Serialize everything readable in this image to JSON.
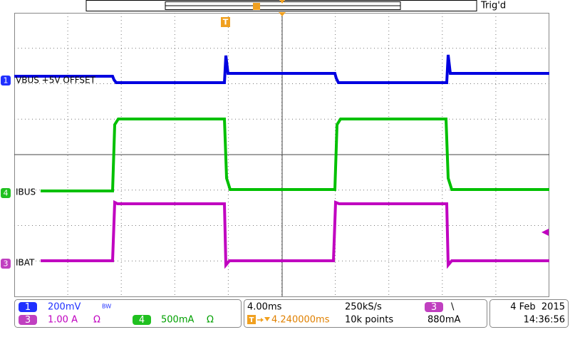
{
  "top_bar": {
    "status": "Trig'd",
    "trigger_marker": "T"
  },
  "channels": [
    {
      "number": "1",
      "label": "VBUS +5V OFFSET",
      "scale": "200mV",
      "bandwidth": "BW"
    },
    {
      "number": "4",
      "label": "IBUS",
      "scale": "500mA",
      "coupling": "Ω"
    },
    {
      "number": "3",
      "label": "IBAT",
      "scale": "1.00 A",
      "coupling": "Ω"
    }
  ],
  "timebase": {
    "time_per_div": "4.00ms",
    "sample_rate": "250kS/s",
    "trigger_icon": "T",
    "delay": "4.240000ms",
    "record_length": "10k points"
  },
  "trigger": {
    "source": "3",
    "slope": "\\",
    "level": "880mA"
  },
  "datetime": {
    "date": "4 Feb  2015",
    "time": "14:36:56"
  }
}
